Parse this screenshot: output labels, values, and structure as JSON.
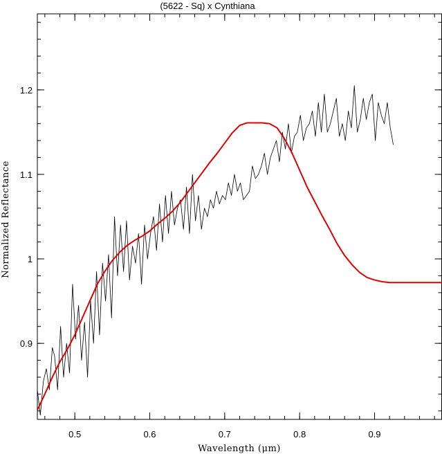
{
  "chart_data": {
    "type": "line",
    "title": "(5622 - Sq) x Cynthiana",
    "xlabel": "Wavelength (μm)",
    "ylabel": "Normalized Reflectance",
    "xlim": [
      0.45,
      0.99
    ],
    "ylim": [
      0.81,
      1.29
    ],
    "grid": false,
    "x_major_ticks": [
      0.5,
      0.6,
      0.7,
      0.8,
      0.9
    ],
    "x_tick_labels": [
      "0.5",
      "0.6",
      "0.7",
      "0.8",
      "0.9"
    ],
    "x_minor_step": 0.02,
    "y_major_ticks": [
      0.9,
      1.0,
      1.1,
      1.2
    ],
    "y_tick_labels": [
      "0.9",
      "1",
      "1.1",
      "1.2"
    ],
    "y_minor_step": 0.02,
    "series": [
      {
        "color": "#000000",
        "line_width": 0.8,
        "x": [
          0.45,
          0.454,
          0.458,
          0.462,
          0.466,
          0.47,
          0.473,
          0.477,
          0.481,
          0.485,
          0.489,
          0.493,
          0.497,
          0.501,
          0.505,
          0.509,
          0.513,
          0.517,
          0.521,
          0.525,
          0.529,
          0.533,
          0.537,
          0.541,
          0.545,
          0.549,
          0.553,
          0.557,
          0.561,
          0.565,
          0.569,
          0.573,
          0.577,
          0.581,
          0.585,
          0.589,
          0.593,
          0.597,
          0.601,
          0.605,
          0.609,
          0.613,
          0.617,
          0.621,
          0.625,
          0.629,
          0.633,
          0.637,
          0.641,
          0.645,
          0.649,
          0.653,
          0.657,
          0.661,
          0.665,
          0.669,
          0.673,
          0.677,
          0.681,
          0.685,
          0.689,
          0.693,
          0.697,
          0.701,
          0.705,
          0.709,
          0.713,
          0.717,
          0.721,
          0.725,
          0.729,
          0.733,
          0.737,
          0.741,
          0.745,
          0.749,
          0.753,
          0.757,
          0.761,
          0.765,
          0.769,
          0.773,
          0.777,
          0.781,
          0.785,
          0.789,
          0.793,
          0.797,
          0.801,
          0.805,
          0.809,
          0.813,
          0.817,
          0.821,
          0.825,
          0.829,
          0.833,
          0.837,
          0.841,
          0.845,
          0.849,
          0.853,
          0.857,
          0.861,
          0.865,
          0.869,
          0.873,
          0.877,
          0.881,
          0.885,
          0.889,
          0.893,
          0.897,
          0.901,
          0.905,
          0.909,
          0.913,
          0.917,
          0.921,
          0.925
        ],
        "y": [
          0.845,
          0.815,
          0.855,
          0.87,
          0.845,
          0.895,
          0.885,
          0.845,
          0.92,
          0.86,
          0.9,
          0.865,
          0.97,
          0.905,
          0.945,
          0.88,
          0.925,
          0.86,
          0.95,
          0.9,
          0.985,
          0.91,
          0.995,
          0.95,
          1.005,
          0.93,
          1.05,
          0.98,
          1.04,
          0.985,
          1.045,
          0.975,
          1.015,
          0.995,
          1.03,
          0.97,
          1.04,
          1.0,
          1.03,
          1.05,
          1.01,
          1.065,
          1.02,
          1.075,
          1.03,
          1.08,
          1.04,
          1.06,
          1.07,
          1.035,
          1.085,
          1.03,
          1.1,
          1.045,
          1.075,
          1.035,
          1.06,
          1.05,
          1.07,
          1.06,
          1.08,
          1.065,
          1.075,
          1.07,
          1.09,
          1.075,
          1.1,
          1.08,
          1.09,
          1.07,
          1.075,
          1.08,
          1.11,
          1.095,
          1.1,
          1.11,
          1.125,
          1.1,
          1.12,
          1.13,
          1.14,
          1.115,
          1.15,
          1.13,
          1.16,
          1.125,
          1.145,
          1.15,
          1.17,
          1.14,
          1.155,
          1.16,
          1.175,
          1.145,
          1.185,
          1.15,
          1.195,
          1.15,
          1.16,
          1.175,
          1.19,
          1.145,
          1.16,
          1.14,
          1.175,
          1.155,
          1.205,
          1.15,
          1.165,
          1.19,
          1.165,
          1.185,
          1.195,
          1.14,
          1.185,
          1.17,
          1.16,
          1.185,
          1.155,
          1.135
        ],
        "x_extra_note": ""
      },
      {
        "color": "#e00000",
        "line_width": 2,
        "x": [
          0.45,
          0.46,
          0.47,
          0.48,
          0.49,
          0.5,
          0.51,
          0.52,
          0.53,
          0.54,
          0.55,
          0.56,
          0.57,
          0.58,
          0.59,
          0.6,
          0.61,
          0.62,
          0.63,
          0.64,
          0.65,
          0.66,
          0.67,
          0.68,
          0.69,
          0.7,
          0.71,
          0.72,
          0.73,
          0.74,
          0.75,
          0.76,
          0.77,
          0.78,
          0.79,
          0.8,
          0.81,
          0.82,
          0.83,
          0.84,
          0.85,
          0.86,
          0.87,
          0.88,
          0.89,
          0.9,
          0.91,
          0.92,
          0.93,
          0.94,
          0.95,
          0.96,
          0.97,
          0.98,
          0.99
        ],
        "y": [
          0.821,
          0.84,
          0.86,
          0.878,
          0.893,
          0.91,
          0.93,
          0.95,
          0.97,
          0.985,
          0.998,
          1.008,
          1.016,
          1.022,
          1.027,
          1.033,
          1.041,
          1.048,
          1.056,
          1.066,
          1.078,
          1.09,
          1.102,
          1.114,
          1.125,
          1.137,
          1.149,
          1.158,
          1.161,
          1.161,
          1.161,
          1.16,
          1.155,
          1.142,
          1.125,
          1.105,
          1.085,
          1.068,
          1.051,
          1.035,
          1.018,
          1.004,
          0.993,
          0.984,
          0.978,
          0.975,
          0.973,
          0.972,
          0.972,
          0.972,
          0.972,
          0.972,
          0.972,
          0.972,
          0.972
        ]
      }
    ]
  }
}
